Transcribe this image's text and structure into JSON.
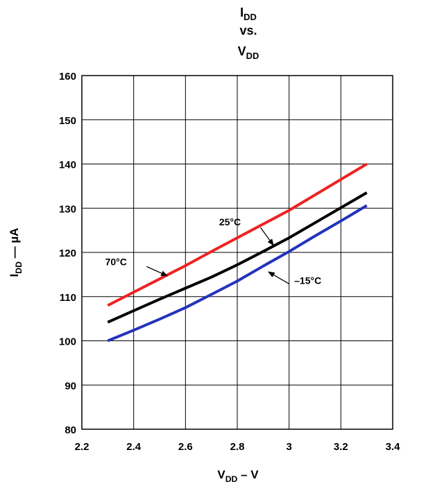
{
  "chart_data": {
    "type": "line",
    "title_lines": [
      {
        "main": "I",
        "sub": "DD"
      },
      {
        "main": "vs.",
        "sub": ""
      },
      {
        "main": "V",
        "sub": "DD"
      }
    ],
    "xlabel": {
      "main": "V",
      "sub": "DD",
      "rest": " – V"
    },
    "ylabel": {
      "main": "I",
      "sub": "DD",
      "rest": " — µA"
    },
    "xlim": [
      2.2,
      3.4
    ],
    "ylim": [
      80,
      160
    ],
    "xticks": [
      {
        "value": 2.2,
        "label": "2.2"
      },
      {
        "value": 2.4,
        "label": "2.4"
      },
      {
        "value": 2.6,
        "label": "2.6"
      },
      {
        "value": 2.8,
        "label": "2.8"
      },
      {
        "value": 3.0,
        "label": "3"
      },
      {
        "value": 3.2,
        "label": "3.2"
      },
      {
        "value": 3.4,
        "label": "3.4"
      }
    ],
    "yticks": [
      {
        "value": 80,
        "label": "80"
      },
      {
        "value": 90,
        "label": "90"
      },
      {
        "value": 100,
        "label": "100"
      },
      {
        "value": 110,
        "label": "110"
      },
      {
        "value": 120,
        "label": "120"
      },
      {
        "value": 130,
        "label": "130"
      },
      {
        "value": 140,
        "label": "140"
      },
      {
        "value": 150,
        "label": "150"
      },
      {
        "value": 160,
        "label": "160"
      }
    ],
    "grid": true,
    "series": [
      {
        "name": "70°C",
        "color": "#ee2222",
        "x": [
          2.3,
          2.4,
          2.5,
          2.6,
          2.7,
          2.8,
          2.9,
          3.0,
          3.1,
          3.2,
          3.3
        ],
        "y": [
          108,
          111,
          114,
          117,
          120.2,
          123.3,
          126.4,
          129.5,
          133,
          136.5,
          140
        ]
      },
      {
        "name": "25°C",
        "color": "#000000",
        "x": [
          2.3,
          2.4,
          2.5,
          2.6,
          2.7,
          2.8,
          2.9,
          3.0,
          3.1,
          3.2,
          3.3
        ],
        "y": [
          104.2,
          106.8,
          109.4,
          111.9,
          114.4,
          117.2,
          120.2,
          123.3,
          126.7,
          130.1,
          133.5
        ]
      },
      {
        "name": "–15°C",
        "color": "#2233bb",
        "x": [
          2.3,
          2.4,
          2.5,
          2.6,
          2.7,
          2.8,
          2.9,
          3.0,
          3.1,
          3.2,
          3.3
        ],
        "y": [
          100,
          102.4,
          104.9,
          107.5,
          110.5,
          113.5,
          116.9,
          120.2,
          123.7,
          127.1,
          130.6
        ]
      }
    ],
    "annotations": [
      {
        "label": "70°C",
        "series": 0,
        "text_at": [
          2.29,
          117.1
        ],
        "arrow_from": [
          2.45,
          116.8
        ],
        "arrow_to": [
          2.53,
          114.7
        ]
      },
      {
        "label": "25°C",
        "series": 1,
        "text_at": [
          2.73,
          126.1
        ],
        "arrow_from": [
          2.89,
          125.6
        ],
        "arrow_to": [
          2.94,
          121.6
        ]
      },
      {
        "label": "–15°C",
        "series": 2,
        "text_at": [
          3.02,
          112.9
        ],
        "arrow_from": [
          3.0,
          112.9
        ],
        "arrow_to": [
          2.92,
          115.6
        ]
      }
    ]
  }
}
